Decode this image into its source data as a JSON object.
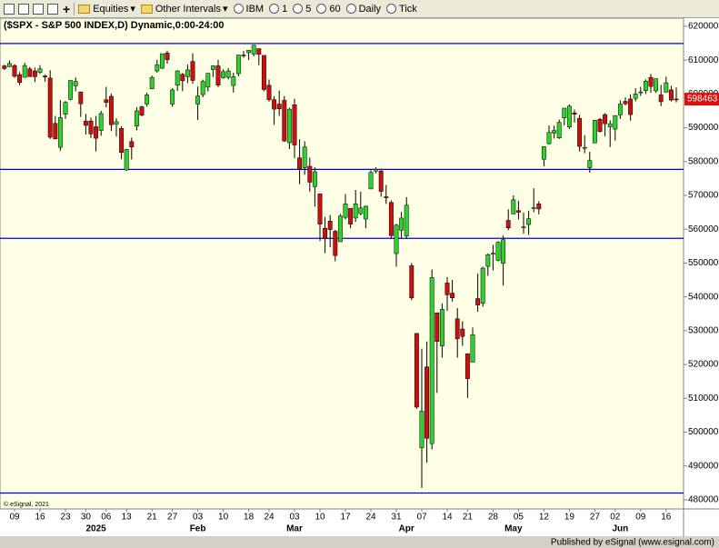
{
  "toolbar": [
    "Equities",
    "Other Intervals",
    "IBM",
    "1",
    "5",
    "60",
    "Daily",
    "Tick"
  ],
  "chart_data": {
    "type": "candlestick",
    "title": "($SPX - S&P 500 INDEX,D) Dynamic,0:00-24:00",
    "copyright": "© eSignal, 2021",
    "footer": "Published by eSignal (www.esignal.com)",
    "categories": [
      null,
      null,
      "09",
      null,
      null,
      null,
      null,
      "16",
      null,
      null,
      null,
      null,
      "23",
      null,
      null,
      null,
      "30",
      null,
      null,
      null,
      "06",
      null,
      null,
      null,
      "13",
      null,
      null,
      null,
      null,
      "21",
      null,
      null,
      null,
      "27",
      null,
      null,
      null,
      null,
      "03",
      null,
      null,
      null,
      null,
      "10",
      null,
      null,
      null,
      null,
      "18",
      null,
      null,
      null,
      "24",
      null,
      null,
      null,
      null,
      "03",
      null,
      null,
      null,
      null,
      "10",
      null,
      null,
      null,
      null,
      "17",
      null,
      null,
      null,
      null,
      "24",
      null,
      null,
      null,
      null,
      "31",
      null,
      null,
      null,
      null,
      "07",
      null,
      null,
      null,
      null,
      "14",
      null,
      null,
      null,
      "21",
      null,
      null,
      null,
      null,
      "28",
      null,
      null,
      null,
      null,
      "05",
      null,
      null,
      null,
      null,
      "12",
      null,
      null,
      null,
      null,
      "19",
      null,
      null,
      null,
      null,
      "27",
      null,
      null,
      null,
      "02",
      null,
      null,
      null,
      null,
      "09",
      null,
      null,
      null,
      null,
      "16",
      null,
      null
    ],
    "months": [
      null,
      null,
      null,
      null,
      null,
      null,
      null,
      null,
      null,
      null,
      null,
      null,
      null,
      null,
      null,
      null,
      null,
      null,
      "2025",
      null,
      null,
      null,
      null,
      null,
      null,
      null,
      null,
      null,
      null,
      null,
      null,
      null,
      null,
      null,
      null,
      null,
      null,
      null,
      "Feb",
      null,
      null,
      null,
      null,
      null,
      null,
      null,
      null,
      null,
      null,
      null,
      null,
      null,
      null,
      null,
      null,
      null,
      null,
      "Mar",
      null,
      null,
      null,
      null,
      null,
      null,
      null,
      null,
      null,
      null,
      null,
      null,
      null,
      null,
      null,
      null,
      null,
      null,
      null,
      null,
      null,
      "Apr",
      null,
      null,
      null,
      null,
      null,
      null,
      null,
      null,
      null,
      null,
      null,
      null,
      null,
      null,
      null,
      null,
      null,
      null,
      null,
      null,
      "May",
      null,
      null,
      null,
      null,
      null,
      null,
      null,
      null,
      null,
      null,
      null,
      null,
      null,
      null,
      null,
      null,
      null,
      null,
      null,
      null,
      "Jun",
      null,
      null,
      null,
      null,
      null,
      null,
      null,
      null,
      null,
      null,
      null,
      null
    ],
    "open": [
      608300,
      608100,
      608400,
      605700,
      604900,
      607400,
      606800,
      606400,
      605300,
      604700,
      591300,
      584200,
      594000,
      598400,
      602400,
      600600,
      592000,
      592000,
      590300,
      589200,
      598300,
      599300,
      591000,
      589800,
      577500,
      585900,
      590500,
      596200,
      597000,
      601500,
      606800,
      607600,
      612100,
      597000,
      602600,
      605800,
      605100,
      609600,
      597000,
      599800,
      602000,
      607200,
      608300,
      604800,
      604900,
      602500,
      606000,
      611500,
      612200,
      611800,
      613400,
      611400,
      602600,
      598300,
      597000,
      598100,
      585600,
      596800,
      581100,
      578200,
      578600,
      572600,
      570500,
      560300,
      562400,
      559400,
      556300,
      563500,
      566200,
      563300,
      564600,
      563000,
      571900,
      577200,
      577200,
      569600,
      567900,
      552800,
      559700,
      558000,
      549200,
      529200,
      495400,
      519300,
      496600,
      535300,
      525500,
      544100,
      541100,
      533500,
      530500,
      523200,
      520700,
      539500,
      538100,
      549000,
      552900,
      550800,
      549900,
      562600,
      564500,
      565500,
      560500,
      561400,
      566300,
      567500,
      580700,
      585300,
      588400,
      587000,
      592900,
      590200,
      594400,
      592800,
      584100,
      578200,
      585500,
      592500,
      593900,
      590300,
      589600,
      593800,
      597800,
      598500,
      598700,
      600500,
      601000,
      604900,
      600900,
      599700,
      600500,
      601200,
      598500
    ],
    "high": [
      608600,
      609900,
      608800,
      606500,
      609200,
      608000,
      607800,
      608500,
      605700,
      607000,
      593500,
      598200,
      597900,
      604000,
      604900,
      600700,
      594100,
      593000,
      593500,
      595000,
      602100,
      600100,
      592800,
      590500,
      583700,
      587100,
      596100,
      596500,
      600400,
      605400,
      610100,
      611900,
      612800,
      601700,
      607000,
      606200,
      608700,
      612000,
      602200,
      604200,
      606200,
      608400,
      610100,
      607300,
      607600,
      606300,
      611600,
      612700,
      612900,
      614500,
      613400,
      611400,
      604300,
      599300,
      601000,
      599400,
      595900,
      598600,
      586600,
      586000,
      581200,
      578300,
      570500,
      563600,
      564200,
      559800,
      564500,
      570400,
      566200,
      571600,
      571100,
      567000,
      577500,
      578300,
      577600,
      573100,
      568500,
      561600,
      565100,
      569500,
      550000,
      529200,
      524700,
      526800,
      548100,
      535300,
      538100,
      545900,
      545000,
      536700,
      532800,
      523200,
      530900,
      546900,
      548900,
      552800,
      555400,
      556500,
      558100,
      565900,
      570000,
      568400,
      564900,
      565500,
      572100,
      568300,
      584500,
      590700,
      590600,
      592400,
      595800,
      596900,
      595400,
      593800,
      587800,
      582900,
      592300,
      592900,
      594300,
      592200,
      593700,
      598100,
      599000,
      599900,
      601700,
      602100,
      604300,
      605900,
      604500,
      602700,
      605100,
      602400,
      601900
    ],
    "low": [
      607100,
      607900,
      604800,
      602600,
      604800,
      605100,
      603500,
      605900,
      603600,
      586700,
      586600,
      583200,
      592600,
      598100,
      600800,
      593200,
      588000,
      587000,
      583000,
      587600,
      596000,
      589000,
      587400,
      580700,
      577300,
      580600,
      589200,
      593400,
      596200,
      601400,
      606300,
      607400,
      608900,
      596200,
      600900,
      600800,
      603200,
      603000,
      592300,
      599000,
      600700,
      605000,
      602000,
      604500,
      604300,
      600400,
      605200,
      610700,
      610000,
      611100,
      608500,
      600800,
      597700,
      590900,
      593500,
      585800,
      583700,
      581000,
      573300,
      576100,
      571100,
      566700,
      556500,
      552900,
      554700,
      550500,
      556300,
      562900,
      560300,
      562200,
      564100,
      560300,
      571900,
      576500,
      569600,
      567500,
      557200,
      548900,
      557200,
      557200,
      539000,
      506900,
      483500,
      491000,
      494900,
      511600,
      522000,
      535800,
      538600,
      522000,
      525500,
      510100,
      520700,
      535600,
      537100,
      546200,
      547800,
      550500,
      543300,
      559700,
      564500,
      562900,
      558700,
      558300,
      565000,
      564400,
      578600,
      585000,
      586800,
      586700,
      590700,
      589600,
      591500,
      583000,
      582500,
      576700,
      585500,
      588600,
      587500,
      584300,
      586200,
      592600,
      596600,
      592100,
      597800,
      599400,
      600000,
      600300,
      600300,
      596400,
      600500,
      597800,
      597500
    ],
    "close": [
      607500,
      609000,
      605200,
      603400,
      608400,
      605100,
      605100,
      607400,
      605000,
      587200,
      586700,
      593000,
      597500,
      604000,
      603700,
      597100,
      590700,
      588200,
      586900,
      594200,
      597500,
      590900,
      591800,
      582700,
      583600,
      584300,
      595000,
      593700,
      599700,
      604900,
      608600,
      611900,
      610100,
      601200,
      606800,
      603900,
      607100,
      604000,
      599400,
      603700,
      606100,
      608300,
      602600,
      606600,
      606800,
      605100,
      611500,
      611400,
      612900,
      614400,
      611700,
      601300,
      598300,
      595500,
      595600,
      586100,
      595500,
      584900,
      577800,
      584300,
      573900,
      577000,
      561500,
      557200,
      559900,
      552200,
      563900,
      567500,
      561500,
      567500,
      566300,
      566800,
      576800,
      577700,
      571200,
      569300,
      558100,
      561200,
      563300,
      567100,
      539700,
      507400,
      506200,
      498200,
      545700,
      526800,
      536300,
      540600,
      539700,
      527600,
      528300,
      515800,
      528800,
      537600,
      548500,
      552500,
      552900,
      556100,
      556900,
      560400,
      568700,
      565000,
      560700,
      563100,
      566400,
      566000,
      584400,
      588600,
      589200,
      591600,
      595800,
      596400,
      594000,
      584500,
      584200,
      580300,
      592200,
      588900,
      591200,
      591200,
      593600,
      597000,
      597100,
      593900,
      600000,
      600600,
      603800,
      602200,
      604500,
      597700,
      603300,
      598200,
      598463
    ],
    "up_color": "#2fd02f",
    "down_color": "#cc1010",
    "wick_color": "#000000",
    "last_price": 598463,
    "hlines": [
      614900,
      577700,
      557300,
      482000
    ],
    "hline_color": "#0000dd",
    "ylim": [
      477300,
      622400
    ],
    "yticks": [
      480000,
      490000,
      500000,
      510000,
      520000,
      530000,
      540000,
      550000,
      560000,
      570000,
      580000,
      590000,
      600000,
      610000,
      620000
    ],
    "grid": false
  }
}
